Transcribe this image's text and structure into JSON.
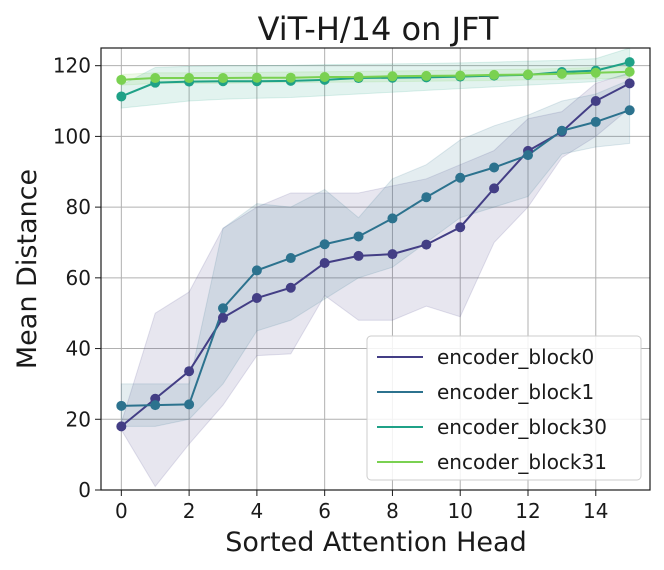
{
  "chart_data": {
    "type": "line",
    "title": "ViT-H/14 on JFT",
    "xlabel": "Sorted Attention Head",
    "ylabel": "Mean Distance",
    "xlim": [
      -0.6,
      15.6
    ],
    "ylim": [
      0,
      125
    ],
    "xticks": [
      0,
      2,
      4,
      6,
      8,
      10,
      12,
      14
    ],
    "yticks": [
      0,
      20,
      40,
      60,
      80,
      100,
      120
    ],
    "grid": true,
    "legend_position": "bottom-right",
    "x": [
      0,
      1,
      2,
      3,
      4,
      5,
      6,
      7,
      8,
      9,
      10,
      11,
      12,
      13,
      14,
      15
    ],
    "series": [
      {
        "name": "encoder_block0",
        "color": "#433e85",
        "values": [
          18,
          25.8,
          33.6,
          48.7,
          54.3,
          57.2,
          64.2,
          66.2,
          66.7,
          69.4,
          74.3,
          85.3,
          95.9,
          101.3,
          110,
          115
        ],
        "lower": [
          17,
          1,
          13,
          24,
          38,
          38.5,
          55,
          48,
          48,
          52,
          49,
          70,
          80,
          94,
          100,
          108
        ],
        "upper": [
          19,
          50,
          56,
          74,
          80,
          84,
          84,
          84,
          86,
          88,
          92,
          96,
          105,
          107,
          115,
          118
        ]
      },
      {
        "name": "encoder_block1",
        "color": "#2c728e",
        "values": [
          23.8,
          24,
          24.2,
          51.4,
          62.1,
          65.6,
          69.5,
          71.7,
          76.8,
          82.8,
          88.3,
          91.2,
          94.7,
          101.6,
          104.1,
          107.4
        ],
        "lower": [
          18,
          18,
          20,
          30,
          45,
          48,
          54,
          60,
          63,
          70,
          77,
          80,
          83,
          95,
          97,
          98
        ],
        "upper": [
          30,
          30,
          30,
          74,
          81,
          80,
          85,
          77,
          88,
          92,
          99,
          103,
          106,
          110,
          112,
          116
        ]
      },
      {
        "name": "encoder_block30",
        "color": "#1fa187",
        "values": [
          111.3,
          115.2,
          115.5,
          115.6,
          115.6,
          115.7,
          116,
          116.5,
          116.6,
          116.7,
          116.9,
          117.2,
          117.4,
          118.2,
          118.6,
          121
        ],
        "lower": [
          108,
          109,
          110,
          110.5,
          110.8,
          111,
          111.5,
          112,
          112.5,
          113,
          113.5,
          114,
          114.5,
          115,
          115.5,
          117.5
        ],
        "upper": [
          114.5,
          119.5,
          119.8,
          120,
          120,
          120.1,
          120.3,
          120.4,
          120.5,
          120.6,
          120.8,
          121,
          121.3,
          121.5,
          122,
          125
        ]
      },
      {
        "name": "encoder_block31",
        "color": "#7ad151",
        "values": [
          116,
          116.5,
          116.5,
          116.5,
          116.6,
          116.6,
          116.8,
          116.8,
          117,
          117.1,
          117.2,
          117.4,
          117.5,
          117.7,
          118,
          118.3
        ],
        "lower": [
          114.5,
          115,
          115,
          115,
          115.2,
          115.2,
          115.3,
          115.4,
          115.5,
          115.6,
          115.7,
          115.8,
          116,
          116.1,
          116.3,
          116.5
        ],
        "upper": [
          117.5,
          118,
          118,
          118.1,
          118.1,
          118.2,
          118.3,
          118.4,
          118.5,
          118.6,
          118.7,
          118.9,
          119,
          119.2,
          119.5,
          119.8
        ]
      }
    ]
  }
}
